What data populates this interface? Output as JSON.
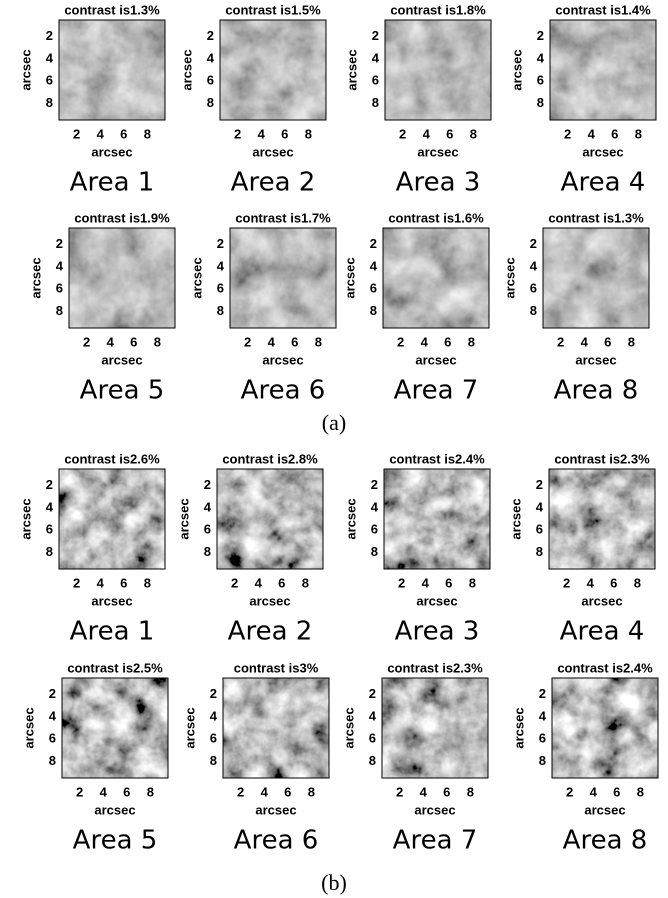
{
  "axis": {
    "label": "arcsec",
    "ticks": [
      "2",
      "4",
      "6",
      "8"
    ]
  },
  "groups": [
    {
      "label": "(a)",
      "panels": [
        {
          "title": "contrast is1.3%",
          "area": "Area 1"
        },
        {
          "title": "contrast is1.5%",
          "area": "Area 2"
        },
        {
          "title": "contrast is1.8%",
          "area": "Area 3"
        },
        {
          "title": "contrast is1.4%",
          "area": "Area 4"
        },
        {
          "title": "contrast is1.9%",
          "area": "Area 5"
        },
        {
          "title": "contrast is1.7%",
          "area": "Area 6"
        },
        {
          "title": "contrast is1.6%",
          "area": "Area 7"
        },
        {
          "title": "contrast is1.3%",
          "area": "Area 8"
        }
      ]
    },
    {
      "label": "(b)",
      "panels": [
        {
          "title": "contrast is2.6%",
          "area": "Area 1"
        },
        {
          "title": "contrast is2.8%",
          "area": "Area 2"
        },
        {
          "title": "contrast is2.4%",
          "area": "Area 3"
        },
        {
          "title": "contrast is2.3%",
          "area": "Area 4"
        },
        {
          "title": "contrast is2.5%",
          "area": "Area 5"
        },
        {
          "title": "contrast is3%",
          "area": "Area 6"
        },
        {
          "title": "contrast is2.3%",
          "area": "Area 7"
        },
        {
          "title": "contrast is2.4%",
          "area": "Area 8"
        }
      ]
    }
  ]
}
